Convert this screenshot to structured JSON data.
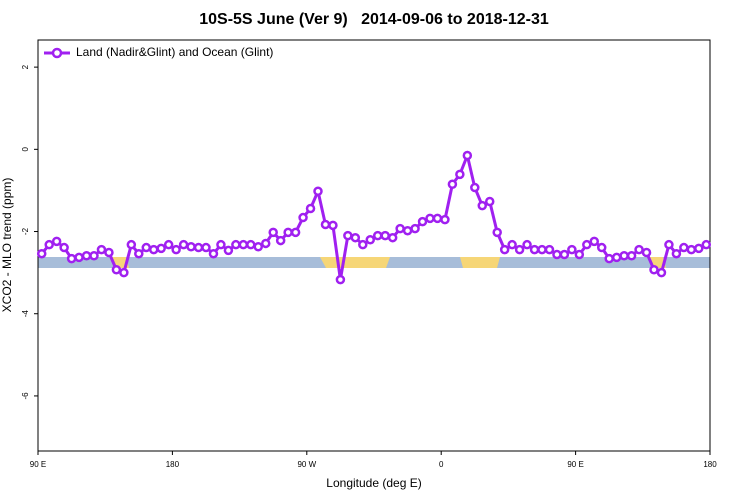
{
  "chart_data": {
    "type": "line",
    "title": "10S-5S June (Ver 9)   2014-09-06 to 2018-12-31",
    "xlabel": "Longitude (deg E)",
    "ylabel": "XCO2 - MLO trend (ppm)",
    "xlim": [
      90,
      540
    ],
    "ylim": [
      -7.34,
      2.66
    ],
    "xticks": [
      {
        "value": 90,
        "label": "90 E"
      },
      180,
      {
        "value": 270,
        "label": "90 W"
      },
      {
        "value": 360,
        "label": "0"
      },
      {
        "value": 450,
        "label": "90 E"
      },
      {
        "value": 540,
        "label": "180"
      }
    ],
    "yticks": [
      2,
      0,
      -2,
      -4,
      -6
    ],
    "legend": "top-left",
    "x": [
      92.5,
      97.5,
      102.5,
      107.5,
      112.5,
      117.5,
      122.5,
      127.5,
      132.5,
      137.5,
      142.5,
      147.5,
      152.5,
      157.5,
      162.5,
      167.5,
      172.5,
      177.5,
      182.5,
      187.5,
      192.5,
      197.5,
      202.5,
      207.5,
      212.5,
      217.5,
      222.5,
      227.5,
      232.5,
      237.5,
      242.5,
      247.5,
      252.5,
      257.5,
      262.5,
      267.5,
      272.5,
      277.5,
      282.5,
      287.5,
      292.5,
      297.5,
      302.5,
      307.5,
      312.5,
      317.5,
      322.5,
      327.5,
      332.5,
      337.5,
      342.5,
      347.5,
      352.5,
      357.5,
      362.5,
      367.5,
      372.5,
      377.5,
      382.5,
      387.5,
      392.5,
      397.5,
      402.5,
      407.5,
      412.5,
      417.5,
      422.5,
      427.5,
      432.5,
      437.5,
      442.5,
      447.5,
      452.5,
      457.5,
      462.5,
      467.5,
      472.5,
      477.5,
      482.5,
      487.5,
      492.5,
      497.5,
      502.5,
      507.5,
      512.5,
      517.5,
      522.5,
      527.5,
      532.5,
      537.5
    ],
    "series": [
      {
        "name": "Land (Nadir&Glint) and Ocean (Glint)",
        "color": "#a020f0",
        "values": [
          -2.54,
          -2.32,
          -2.24,
          -2.39,
          -2.66,
          -2.63,
          -2.59,
          -2.59,
          -2.44,
          -2.51,
          -2.93,
          -3.0,
          -2.32,
          -2.54,
          -2.39,
          -2.44,
          -2.41,
          -2.32,
          -2.44,
          -2.32,
          -2.37,
          -2.39,
          -2.39,
          -2.54,
          -2.32,
          -2.46,
          -2.32,
          -2.32,
          -2.32,
          -2.37,
          -2.29,
          -2.02,
          -2.22,
          -2.02,
          -2.02,
          -1.66,
          -1.44,
          -1.02,
          -1.83,
          -1.85,
          -3.17,
          -2.1,
          -2.15,
          -2.32,
          -2.2,
          -2.1,
          -2.1,
          -2.15,
          -1.93,
          -1.98,
          -1.93,
          -1.76,
          -1.68,
          -1.68,
          -1.71,
          -0.85,
          -0.61,
          -0.15,
          -0.93,
          -1.37,
          -1.27,
          -2.02,
          -2.44,
          -2.32,
          -2.44,
          -2.32,
          -2.44,
          -2.44,
          -2.44,
          -2.56,
          -2.56,
          -2.44,
          -2.56,
          -2.32,
          -2.24,
          -2.39,
          -2.66,
          -2.63,
          -2.59,
          -2.59,
          -2.44,
          -2.51,
          -2.93,
          -3.0,
          -2.32,
          -2.54,
          -2.39,
          -2.44,
          -2.41,
          -2.32
        ]
      }
    ]
  }
}
